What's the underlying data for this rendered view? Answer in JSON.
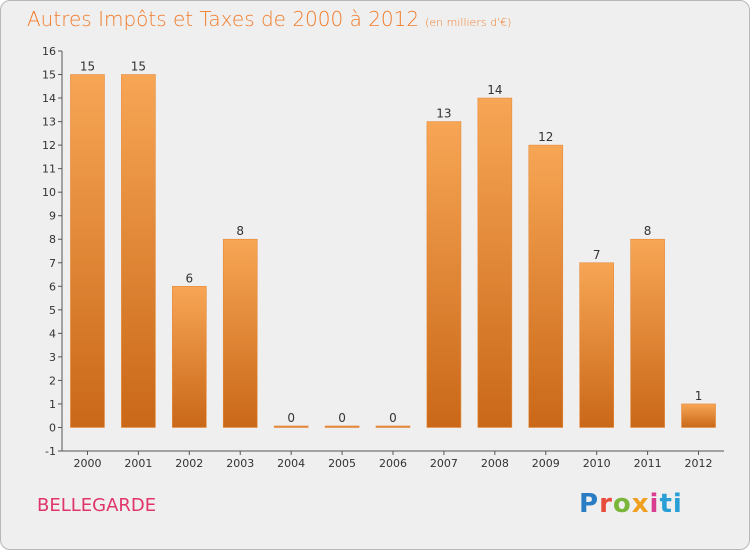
{
  "chart_data": {
    "type": "bar",
    "title": "Autres Impôts et Taxes de 2000 à 2012",
    "subtitle": "(en milliers d'€)",
    "categories": [
      "2000",
      "2001",
      "2002",
      "2003",
      "2004",
      "2005",
      "2006",
      "2007",
      "2008",
      "2009",
      "2010",
      "2011",
      "2012"
    ],
    "values": [
      15,
      15,
      6,
      8,
      0,
      0,
      0,
      13,
      14,
      12,
      7,
      8,
      1
    ],
    "ylim": [
      -1,
      16
    ],
    "yticks": [
      -1,
      0,
      1,
      2,
      3,
      4,
      5,
      6,
      7,
      8,
      9,
      10,
      11,
      12,
      13,
      14,
      15,
      16
    ],
    "grid": false,
    "bar_color": "#f39c4a",
    "bar_color_dark": "#c96818"
  },
  "place_name": "BELLEGARDE",
  "logo": [
    "P",
    "r",
    "o",
    "x",
    "i",
    "ti"
  ]
}
